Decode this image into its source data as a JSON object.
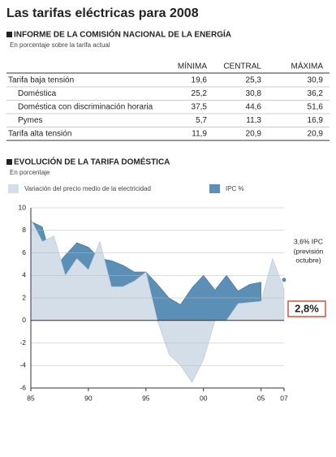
{
  "title": "Las tarifas eléctricas para 2008",
  "table": {
    "title": "INFORME DE LA COMISIÓN NACIONAL DE LA ENERGÍA",
    "note": "En porcentaje sobre la tarifa actual",
    "columns": [
      "MÍNIMA",
      "CENTRAL",
      "MÁXIMA"
    ],
    "rows": [
      {
        "label": "Tarifa baja tensión",
        "values": [
          "19,6",
          "25,3",
          "30,9"
        ]
      },
      {
        "label": "Doméstica",
        "values": [
          "25,2",
          "30,8",
          "36,2"
        ]
      },
      {
        "label": "Doméstica con discriminación horaria",
        "values": [
          "37,5",
          "44,6",
          "51,6"
        ]
      },
      {
        "label": "Pymes",
        "values": [
          "5,7",
          "11,3",
          "16,9"
        ]
      },
      {
        "label": "Tarifa alta tensión",
        "values": [
          "11,9",
          "20,9",
          "20,9"
        ]
      }
    ]
  },
  "chart_data": {
    "type": "area",
    "title": "EVOLUCIÓN DE LA TARIFA DOMÉSTICA",
    "subtitle": "En porcentaje",
    "x": [
      1985,
      1986,
      1987,
      1988,
      1989,
      1990,
      1991,
      1992,
      1993,
      1994,
      1995,
      1996,
      1997,
      1998,
      1999,
      2000,
      2001,
      2002,
      2003,
      2004,
      2005,
      2006,
      2007
    ],
    "series": [
      {
        "name": "IPC %",
        "color": "#5b8fb5",
        "values": [
          8.8,
          8.3,
          4.6,
          5.8,
          6.9,
          6.5,
          5.5,
          5.3,
          4.9,
          4.3,
          4.3,
          3.2,
          2.0,
          1.4,
          2.9,
          4.0,
          2.7,
          4.0,
          2.6,
          3.2,
          3.4,
          null,
          3.6
        ]
      },
      {
        "name": "Variación del precio medio de la electricidad",
        "color": "#d3dee8",
        "values": [
          9,
          7,
          7.5,
          4,
          5.5,
          4.5,
          7,
          3,
          3,
          3.5,
          4.3,
          0,
          -3,
          -4,
          -5.5,
          -3.5,
          0,
          0,
          1.5,
          1.6,
          1.7,
          5.5,
          2.8
        ]
      }
    ],
    "xlim": [
      1985,
      2007
    ],
    "ylim": [
      -6,
      10
    ],
    "yticks": [
      -6,
      -4,
      -2,
      0,
      2,
      4,
      6,
      8,
      10
    ],
    "xticks": [
      {
        "value": 1985,
        "label": "85"
      },
      {
        "value": 1990,
        "label": "90"
      },
      {
        "value": 1995,
        "label": "95"
      },
      {
        "value": 2000,
        "label": "00"
      },
      {
        "value": 2005,
        "label": "05"
      },
      {
        "value": 2007,
        "label": "07"
      }
    ],
    "grid": true,
    "annotations": [
      "3,6% IPC",
      "(previsión",
      "octubre)",
      "2,8%"
    ]
  }
}
